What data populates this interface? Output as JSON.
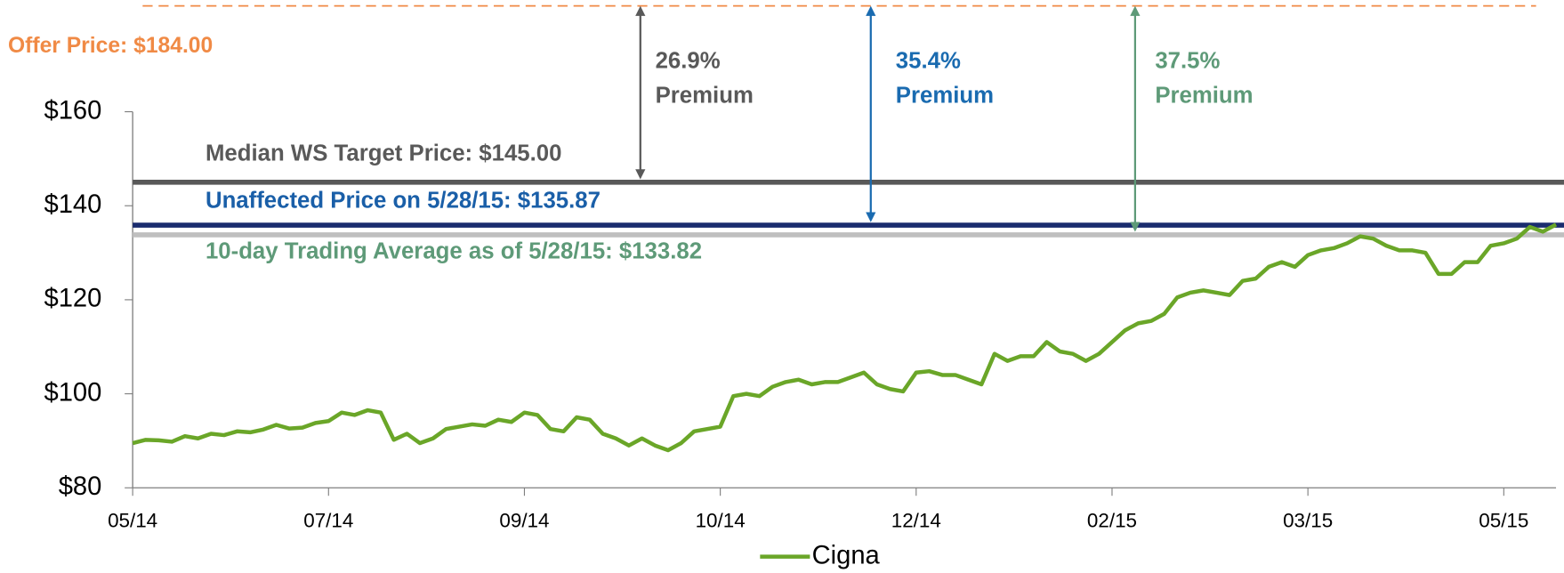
{
  "chart_data": {
    "type": "line",
    "categories": [
      "05/14",
      null,
      null,
      null,
      null,
      null,
      null,
      null,
      null,
      null,
      null,
      null,
      null,
      null,
      null,
      "07/14",
      null,
      null,
      null,
      null,
      null,
      null,
      null,
      null,
      null,
      null,
      null,
      null,
      null,
      null,
      "09/14",
      null,
      null,
      null,
      null,
      null,
      null,
      null,
      null,
      null,
      null,
      null,
      null,
      null,
      null,
      "10/14",
      null,
      null,
      null,
      null,
      null,
      null,
      null,
      null,
      null,
      null,
      null,
      null,
      null,
      null,
      "12/14",
      null,
      null,
      null,
      null,
      null,
      null,
      null,
      null,
      null,
      null,
      null,
      null,
      null,
      null,
      "02/15",
      null,
      null,
      null,
      null,
      null,
      null,
      null,
      null,
      null,
      null,
      null,
      null,
      null,
      null,
      "03/15",
      null,
      null,
      null,
      null,
      null,
      null,
      null,
      null,
      null,
      null,
      null,
      null,
      null,
      null,
      "05/15",
      null,
      null,
      null,
      null
    ],
    "series": [
      {
        "name": "Cigna",
        "color": "#6aa628",
        "values": [
          89.5,
          90.2,
          90.1,
          89.8,
          91,
          90.5,
          91.5,
          91.2,
          92,
          91.8,
          92.4,
          93.4,
          92.6,
          92.8,
          93.8,
          94.2,
          96,
          95.5,
          96.5,
          96,
          90.2,
          91.5,
          89.5,
          90.5,
          92.5,
          93,
          93.5,
          93.2,
          94.5,
          94,
          96,
          95.5,
          92.5,
          92,
          95,
          94.5,
          91.5,
          90.5,
          89,
          90.5,
          89,
          88,
          89.5,
          92,
          92.5,
          93,
          99.5,
          100,
          99.5,
          101.5,
          102.5,
          103,
          102,
          102.5,
          102.5,
          103.5,
          104.5,
          102,
          101,
          100.5,
          104.5,
          104.8,
          104,
          104,
          103,
          102,
          108.5,
          107,
          108,
          108,
          111,
          109,
          108.5,
          107,
          108.5,
          111,
          113.5,
          115,
          115.5,
          117,
          120.5,
          121.5,
          122,
          121.5,
          121,
          124,
          124.5,
          127,
          128,
          127,
          129.5,
          130.5,
          131,
          132,
          133.5,
          133,
          131.5,
          130.5,
          130.5,
          130,
          125.5,
          125.5,
          128,
          128,
          131.5,
          132,
          133,
          135.5,
          134.5,
          136
        ]
      }
    ],
    "ylim": [
      80,
      160
    ],
    "yticks": [
      {
        "value": 80,
        "label": "$80"
      },
      {
        "value": 100,
        "label": "$100"
      },
      {
        "value": 120,
        "label": "$120"
      },
      {
        "value": 140,
        "label": "$140"
      },
      {
        "value": 160,
        "label": "$160"
      }
    ],
    "offer": {
      "label": "Offer Price: $184.00",
      "value": 184,
      "color": "#f08a45"
    },
    "reference_lines": [
      {
        "label": "Median WS Target Price: $145.00",
        "value": 145,
        "color": "#595959",
        "premium": [
          "26.9%",
          "Premium"
        ]
      },
      {
        "label": "Unaffected Price on 5/28/15: $135.87",
        "value": 135.87,
        "color": "#1a2c6e",
        "label_color": "#1a5fa8",
        "premium": [
          "35.4%",
          "Premium"
        ],
        "premium_color": "#1a6bb0"
      },
      {
        "label": "10-day Trading Average as of 5/28/15: $133.82",
        "value": 133.82,
        "color": "#bfbfbf",
        "label_color": "#5e9a78",
        "premium": [
          "37.5%",
          "Premium"
        ],
        "premium_color": "#5e9a78"
      }
    ],
    "legend": "bottom"
  }
}
